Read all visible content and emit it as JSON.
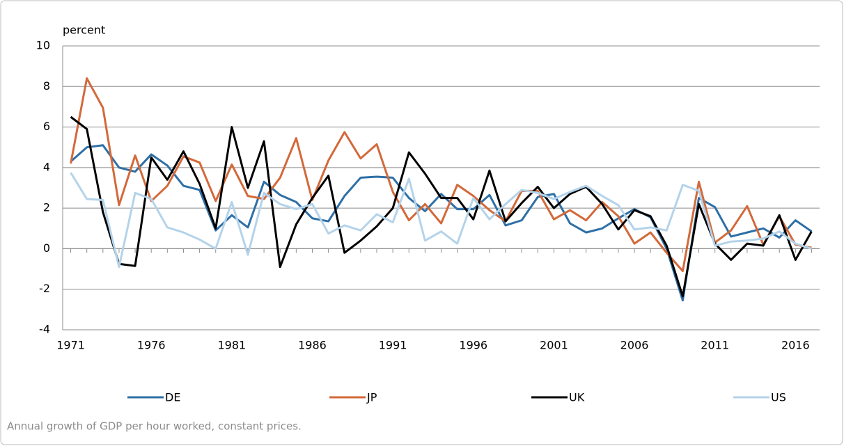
{
  "chart_data": {
    "type": "line",
    "y_label": "percent",
    "caption": "Annual growth of GDP per hour worked, constant prices.",
    "x": [
      1971,
      1972,
      1973,
      1974,
      1975,
      1976,
      1977,
      1978,
      1979,
      1980,
      1981,
      1982,
      1983,
      1984,
      1985,
      1986,
      1987,
      1988,
      1989,
      1990,
      1991,
      1992,
      1993,
      1994,
      1995,
      1996,
      1997,
      1998,
      1999,
      2000,
      2001,
      2002,
      2003,
      2004,
      2005,
      2006,
      2007,
      2008,
      2009,
      2010,
      2011,
      2012,
      2013,
      2014,
      2015,
      2016,
      2017
    ],
    "xlim": [
      1970.5,
      2017.5
    ],
    "xticks": [
      1971,
      1976,
      1981,
      1986,
      1991,
      1996,
      2001,
      2006,
      2011,
      2016
    ],
    "ylim": [
      -4,
      10
    ],
    "yticks": [
      -4,
      -2,
      0,
      2,
      4,
      6,
      8,
      10
    ],
    "grid": true,
    "legend": "bottom",
    "series": [
      {
        "name": "DE",
        "color": "#2e6fa6",
        "values": [
          4.3,
          5.0,
          5.1,
          4.0,
          3.8,
          4.65,
          4.1,
          3.1,
          2.9,
          0.9,
          1.65,
          1.05,
          3.3,
          2.65,
          2.3,
          1.5,
          1.35,
          2.6,
          3.5,
          3.55,
          3.5,
          2.5,
          1.85,
          2.7,
          1.95,
          1.95,
          2.65,
          1.15,
          1.4,
          2.55,
          2.7,
          1.25,
          0.8,
          1.0,
          1.5,
          1.95,
          1.55,
          0.0,
          -2.55,
          2.5,
          2.05,
          0.6,
          0.8,
          1.0,
          0.55,
          1.4,
          0.85
        ]
      },
      {
        "name": "JP",
        "color": "#d3693a",
        "values": [
          4.2,
          8.4,
          6.95,
          2.15,
          4.6,
          2.35,
          3.1,
          4.55,
          4.25,
          2.35,
          4.15,
          2.6,
          2.45,
          3.5,
          5.45,
          2.4,
          4.35,
          5.75,
          4.45,
          5.15,
          2.8,
          1.4,
          2.2,
          1.25,
          3.15,
          2.6,
          1.9,
          1.35,
          2.85,
          2.85,
          1.45,
          1.9,
          1.4,
          2.3,
          1.6,
          0.25,
          0.8,
          -0.2,
          -1.1,
          3.3,
          0.3,
          0.9,
          2.1,
          0.2,
          1.6,
          0.2,
          0.05
        ]
      },
      {
        "name": "UK",
        "color": "#000000",
        "values": [
          6.5,
          5.9,
          1.8,
          -0.75,
          -0.85,
          4.5,
          3.4,
          4.8,
          3.2,
          1.0,
          6.0,
          3.0,
          5.3,
          -0.9,
          1.2,
          2.5,
          3.6,
          -0.2,
          0.4,
          1.1,
          2.0,
          4.75,
          3.7,
          2.5,
          2.5,
          1.45,
          3.85,
          1.35,
          2.25,
          3.05,
          2.0,
          2.7,
          3.05,
          2.2,
          0.95,
          1.9,
          1.6,
          0.15,
          -2.35,
          2.2,
          0.25,
          -0.55,
          0.25,
          0.15,
          1.65,
          -0.55,
          0.85
        ]
      },
      {
        "name": "US",
        "color": "#b4d3ea",
        "values": [
          3.75,
          2.45,
          2.4,
          -0.9,
          2.75,
          2.45,
          1.05,
          0.8,
          0.45,
          0.0,
          2.3,
          -0.3,
          2.75,
          2.2,
          1.95,
          2.2,
          0.75,
          1.15,
          0.9,
          1.7,
          1.3,
          3.45,
          0.4,
          0.85,
          0.25,
          2.5,
          1.45,
          2.2,
          2.9,
          2.75,
          2.45,
          2.8,
          3.1,
          2.6,
          2.15,
          0.95,
          1.05,
          0.9,
          3.15,
          2.85,
          0.15,
          0.35,
          0.4,
          0.5,
          0.85,
          0.25,
          0.0
        ]
      }
    ]
  }
}
